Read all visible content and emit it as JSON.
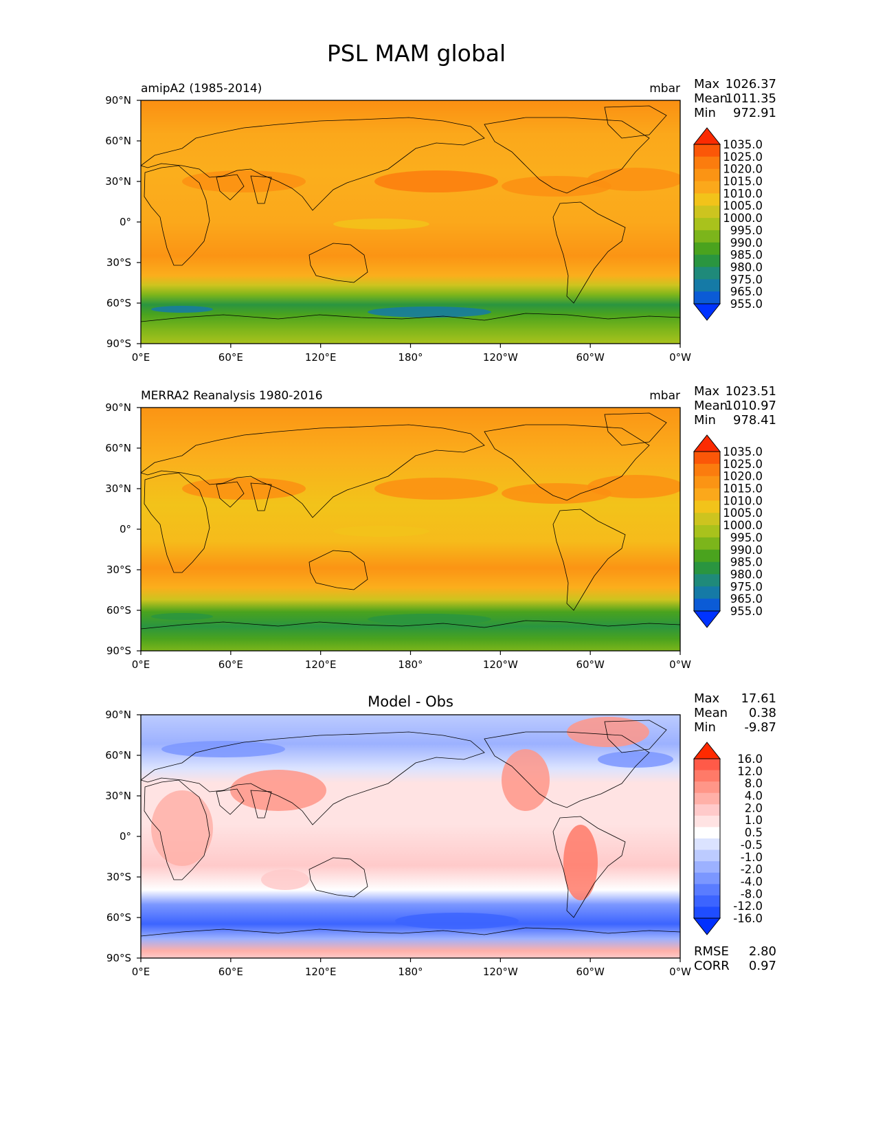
{
  "title": "PSL MAM global",
  "tick_labels": {
    "lat": [
      "90°N",
      "60°N",
      "30°N",
      "0°",
      "30°S",
      "60°S",
      "90°S"
    ],
    "lon": [
      "0°E",
      "60°E",
      "120°E",
      "180°",
      "120°W",
      "60°W",
      "0°W"
    ]
  },
  "colors": {
    "abs_scale": [
      "#0033ff",
      "#0b5bd6",
      "#157aa6",
      "#1f8a7a",
      "#2a9540",
      "#4aa31e",
      "#7cb51b",
      "#a9c21c",
      "#cdc41f",
      "#f2c31a",
      "#fba81b",
      "#fb9414",
      "#fb7c0e",
      "#fb5708",
      "#fb2b02"
    ],
    "diff_scale": [
      "#0030ff",
      "#1f4dff",
      "#3c64ff",
      "#5a7cff",
      "#7b97ff",
      "#9cb1ff",
      "#bccbff",
      "#dbe3ff",
      "#ffffff",
      "#ffe3e3",
      "#ffcaca",
      "#ffb0a8",
      "#ff9688",
      "#ff7a68",
      "#ff5a48",
      "#ff2a00"
    ]
  },
  "panels": [
    {
      "left_title": "amipA2 (1985-2014)",
      "center_title": "",
      "units": "mbar",
      "stats": [
        {
          "label": "Max",
          "value": "1026.37"
        },
        {
          "label": "Mean",
          "value": "1011.35"
        },
        {
          "label": "Min",
          "value": "972.91"
        }
      ],
      "colorbar_labels": [
        "1035.0",
        "1025.0",
        "1020.0",
        "1015.0",
        "1010.0",
        "1005.0",
        "1000.0",
        "995.0",
        "990.0",
        "985.0",
        "980.0",
        "975.0",
        "965.0",
        "955.0"
      ],
      "extra_stats": []
    },
    {
      "left_title": "MERRA2 Reanalysis 1980-2016",
      "center_title": "",
      "units": "mbar",
      "stats": [
        {
          "label": "Max",
          "value": "1023.51"
        },
        {
          "label": "Mean",
          "value": "1010.97"
        },
        {
          "label": "Min",
          "value": "978.41"
        }
      ],
      "colorbar_labels": [
        "1035.0",
        "1025.0",
        "1020.0",
        "1015.0",
        "1010.0",
        "1005.0",
        "1000.0",
        "995.0",
        "990.0",
        "985.0",
        "980.0",
        "975.0",
        "965.0",
        "955.0"
      ],
      "extra_stats": []
    },
    {
      "left_title": "",
      "center_title": "Model - Obs",
      "units": "",
      "stats": [
        {
          "label": "Max",
          "value": "17.61"
        },
        {
          "label": "Mean",
          "value": "0.38"
        },
        {
          "label": "Min",
          "value": "-9.87"
        }
      ],
      "colorbar_labels": [
        "16.0",
        "12.0",
        "8.0",
        "4.0",
        "2.0",
        "1.0",
        "0.5",
        "-0.5",
        "-1.0",
        "-2.0",
        "-4.0",
        "-8.0",
        "-12.0",
        "-16.0"
      ],
      "extra_stats": [
        {
          "label": "RMSE",
          "value": "2.80"
        },
        {
          "label": "CORR",
          "value": "0.97"
        }
      ]
    }
  ]
}
